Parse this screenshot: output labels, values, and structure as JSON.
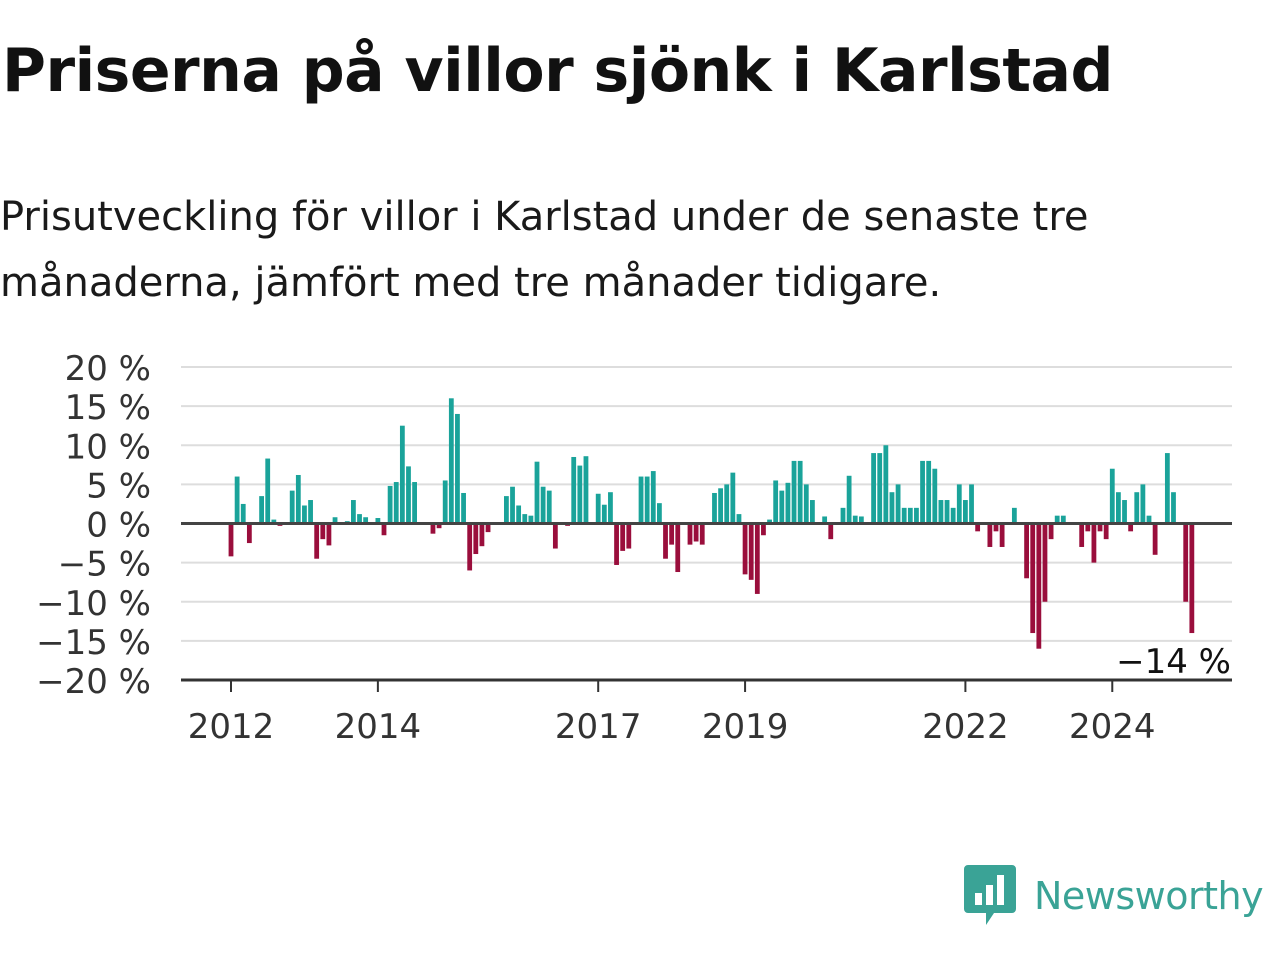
{
  "title": "Priserna på villor sjönk i Karlstad",
  "subtitle": "Prisutveckling för villor i Karlstad under de senaste tre månaderna, jämfört med tre månader tidigare.",
  "brand": "Newsworthy",
  "colors": {
    "positive": "#1aa39a",
    "negative": "#9a0e3c",
    "grid": "#dddddd",
    "axis": "#333333",
    "brand": "#3aa396"
  },
  "chart_data": {
    "type": "bar",
    "start": "2012-01",
    "frequency": "monthly",
    "ylim": [
      -20,
      20
    ],
    "yticks": [
      20,
      15,
      10,
      5,
      0,
      -5,
      -10,
      -15,
      -20
    ],
    "ytick_labels": [
      "20 %",
      "15 %",
      "10 %",
      "5 %",
      "0 %",
      "−5 %",
      "−10 %",
      "−15 %",
      "−20 %"
    ],
    "xtick_labels": [
      "2012",
      "2014",
      "2017",
      "2019",
      "2022",
      "2024"
    ],
    "xtick_years": [
      2012,
      2014,
      2017,
      2019,
      2022,
      2024
    ],
    "last_value_label": "−14 %",
    "grid": true,
    "values": [
      -4.2,
      6.0,
      2.5,
      -2.5,
      0,
      3.5,
      8.3,
      0.5,
      -0.3,
      0,
      4.2,
      6.2,
      2.3,
      3.0,
      -4.5,
      -2.0,
      -2.8,
      0.8,
      0,
      0.3,
      3.0,
      1.2,
      0.8,
      0,
      0.7,
      -1.5,
      4.8,
      5.3,
      12.5,
      7.3,
      5.3,
      0,
      0,
      -1.3,
      -0.6,
      5.5,
      16.0,
      14.0,
      3.9,
      -6.0,
      -3.9,
      -2.9,
      -1.1,
      0,
      0,
      3.5,
      4.7,
      2.3,
      1.2,
      1.0,
      7.9,
      4.7,
      4.2,
      -3.2,
      0,
      -0.3,
      8.5,
      7.4,
      8.6,
      0,
      3.8,
      2.4,
      4.0,
      -5.3,
      -3.5,
      -3.2,
      0,
      6.0,
      6.0,
      6.7,
      2.6,
      -4.5,
      -2.7,
      -6.2,
      0,
      -2.7,
      -2.3,
      -2.7,
      0,
      3.9,
      4.5,
      5.0,
      6.5,
      1.2,
      -6.5,
      -7.2,
      -9.0,
      -1.5,
      0.5,
      5.5,
      4.2,
      5.2,
      8.0,
      8.0,
      5.0,
      3.0,
      0,
      0.9,
      -2.0,
      0,
      2.0,
      6.1,
      1.0,
      0.9,
      0,
      9.0,
      9.0,
      10.0,
      4.0,
      5.0,
      2.0,
      2.0,
      2.0,
      8.0,
      8.0,
      7.0,
      3.0,
      3.0,
      2.0,
      5.0,
      3.0,
      5.0,
      -1.0,
      0,
      -3.0,
      -1.0,
      -3.0,
      0,
      2.0,
      0,
      -7.0,
      -14.0,
      -16.0,
      -10.0,
      -2.0,
      1.0,
      1.0,
      0,
      0,
      -3.0,
      -1.0,
      -5.0,
      -1.0,
      -2.0,
      7.0,
      4.0,
      3.0,
      -1.0,
      4.0,
      5.0,
      1.0,
      -4.0,
      0,
      9.0,
      4.0,
      0,
      -10.0,
      -14.0
    ]
  }
}
